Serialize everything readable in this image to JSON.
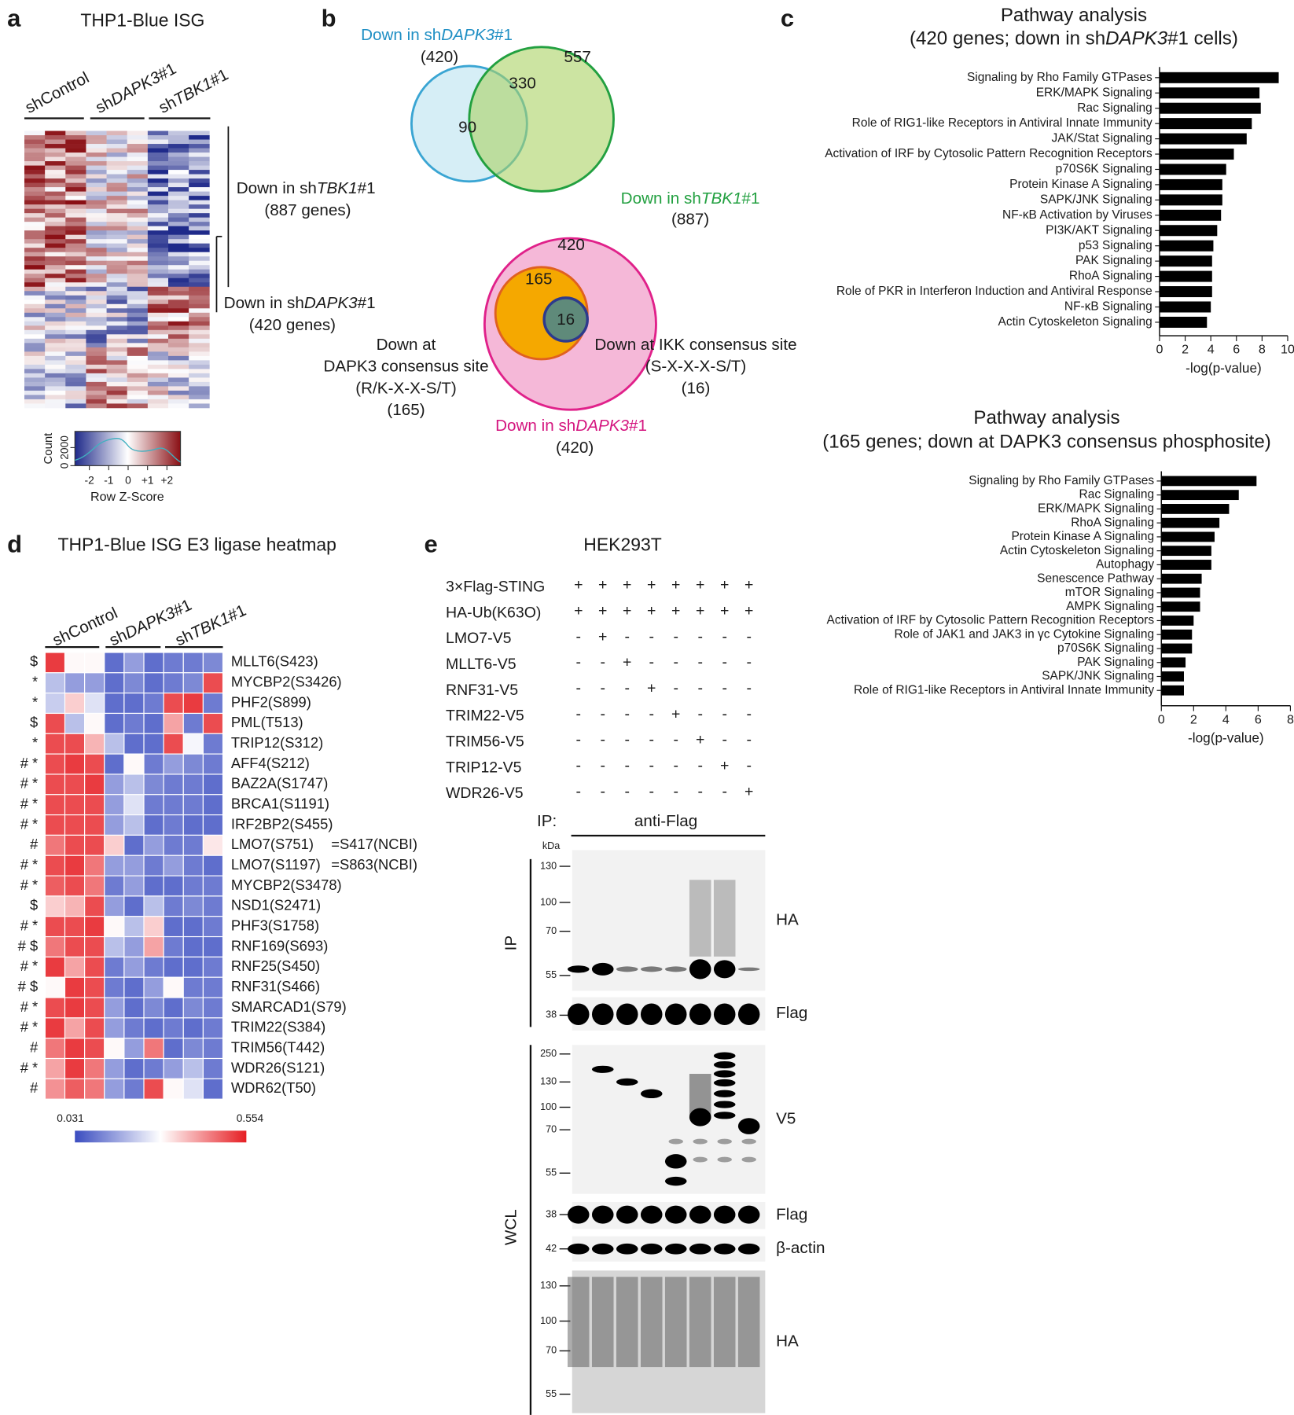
{
  "panel_labels": [
    "a",
    "b",
    "c",
    "d",
    "e"
  ],
  "panel_a": {
    "title": "THP1-Blue ISG",
    "groups": [
      [
        "shControl"
      ],
      [
        "sh",
        "DAPK3",
        "#1"
      ],
      [
        "sh",
        "TBK1",
        "#1"
      ]
    ],
    "annotations": [
      [
        [
          "Down in sh",
          "TBK1",
          "#1"
        ],
        [
          "(887 genes)"
        ]
      ],
      [
        [
          "Down in sh",
          "DAPK3",
          "#1"
        ],
        [
          "(420 genes)"
        ]
      ]
    ],
    "key": {
      "ylabel": "Count",
      "yticks": [
        0,
        2000
      ],
      "xticks": [
        -2,
        -1,
        0,
        {
          "value": 1,
          "label": "+1"
        },
        {
          "value": 2,
          "label": "+2"
        }
      ],
      "xlabel": "Row Z-Score"
    }
  },
  "panel_b": {
    "venn_top": {
      "label_a": [
        "Down in sh",
        "DAPK3",
        "#1"
      ],
      "count_a": "(420)",
      "label_b": [
        "Down in sh",
        "TBK1",
        "#1"
      ],
      "count_b": "(887)",
      "only_b": 557,
      "both": 330,
      "only_a": 90
    },
    "venn_bottom": {
      "outer": 420,
      "middle": 165,
      "inner": 16,
      "middle_label": [
        "Down at",
        "DAPK3 consensus site",
        "(R/K-X-X-S/T)",
        "(165)"
      ],
      "inner_label": [
        "Down at IKK consensus site",
        "(S-X-X-X-S/T)",
        "(16)"
      ],
      "outer_label": [
        "Down in sh",
        "DAPK3",
        "#1"
      ],
      "outer_count": "(420)"
    }
  },
  "chart_data": [
    {
      "type": "bar",
      "orientation": "horizontal",
      "title": "Pathway analysis",
      "subtitle": [
        "(420 genes; down in sh",
        "DAPK3",
        "#1 cells)"
      ],
      "categories": [
        "Signaling by Rho Family GTPases",
        "ERK/MAPK Signaling",
        "Rac Signaling",
        "Role of RIG1-like Receptors in Antiviral Innate Immunity",
        "JAK/Stat Signaling",
        "Activation of IRF by Cytosolic Pattern Recognition Receptors",
        "p70S6K Signaling",
        "Protein Kinase A Signaling",
        "SAPK/JNK Signaling",
        "NF-κB Activation by Viruses",
        "PI3K/AKT Signaling",
        "p53 Signaling",
        "PAK Signaling",
        "RhoA Signaling",
        "Role of PKR in Interferon Induction and Antiviral Response",
        "NF-κB Signaling",
        "Actin Cytoskeleton Signaling"
      ],
      "values": [
        9.3,
        7.8,
        7.9,
        7.2,
        6.8,
        5.8,
        5.2,
        4.9,
        4.9,
        4.8,
        4.5,
        4.2,
        4.1,
        4.1,
        4.1,
        4.0,
        3.7
      ],
      "color": "#000000",
      "xlim": [
        0,
        10
      ],
      "xticks": [
        0,
        2,
        4,
        6,
        8,
        10
      ],
      "xlabel": "-log(p-value)"
    },
    {
      "type": "bar",
      "orientation": "horizontal",
      "title": "Pathway analysis",
      "subtitle": [
        "(165 genes; down at DAPK3 consensus phosphosite)"
      ],
      "categories": [
        "Signaling by Rho Family GTPases",
        "Rac Signaling",
        "ERK/MAPK Signaling",
        "RhoA Signaling",
        "Protein Kinase A Signaling",
        "Actin Cytoskeleton Signaling",
        "Autophagy",
        "Senescence Pathway",
        "mTOR Signaling",
        "AMPK Signaling",
        "Activation of IRF by Cytosolic Pattern Recognition Receptors",
        "Role of JAK1 and JAK3 in γc Cytokine Signaling",
        "p70S6K Signaling",
        "PAK Signaling",
        "SAPK/JNK Signaling",
        "Role of RIG1-like Receptors in Antiviral Innate Immunity"
      ],
      "values": [
        5.9,
        4.8,
        4.2,
        3.6,
        3.3,
        3.1,
        3.1,
        2.5,
        2.4,
        2.4,
        2.0,
        1.9,
        1.9,
        1.5,
        1.4,
        1.4
      ],
      "color": "#000000",
      "xlim": [
        0,
        8
      ],
      "xticks": [
        0,
        2,
        4,
        6,
        8
      ],
      "xlabel": "-log(p-value)"
    }
  ],
  "panel_d": {
    "title": "THP1-Blue ISG  E3 ligase heatmap",
    "groups": [
      [
        "shControl"
      ],
      [
        "sh",
        "DAPK3",
        "#1"
      ],
      [
        "sh",
        "TBK1",
        "#1"
      ]
    ],
    "scale": {
      "min": 0.031,
      "max": 0.554
    },
    "rows": [
      {
        "marks": "$",
        "site": "MLLT6(S423)",
        "values": [
          0.52,
          0.3,
          0.3,
          0.08,
          0.15,
          0.08,
          0.1,
          0.1,
          0.12
        ]
      },
      {
        "marks": "*",
        "site": "MYCBP2(S3426)",
        "values": [
          0.2,
          0.15,
          0.15,
          0.08,
          0.12,
          0.08,
          0.1,
          0.12,
          0.5
        ]
      },
      {
        "marks": "*",
        "site": "PHF2(S899)",
        "values": [
          0.22,
          0.35,
          0.25,
          0.08,
          0.08,
          0.1,
          0.5,
          0.52,
          0.1
        ]
      },
      {
        "marks": "$",
        "site": "PML(T513)",
        "values": [
          0.5,
          0.2,
          0.3,
          0.08,
          0.1,
          0.08,
          0.4,
          0.1,
          0.5
        ]
      },
      {
        "marks": "*",
        "site": "TRIP12(S312)",
        "values": [
          0.5,
          0.5,
          0.38,
          0.2,
          0.08,
          0.08,
          0.5,
          0.28,
          0.1
        ]
      },
      {
        "marks": "# *",
        "site": "AFF4(S212)",
        "values": [
          0.5,
          0.52,
          0.5,
          0.08,
          0.3,
          0.1,
          0.15,
          0.12,
          0.1
        ]
      },
      {
        "marks": "# *",
        "site": "BAZ2A(S1747)",
        "values": [
          0.5,
          0.5,
          0.52,
          0.15,
          0.2,
          0.12,
          0.1,
          0.1,
          0.08
        ]
      },
      {
        "marks": "# *",
        "site": "BRCA1(S1191)",
        "values": [
          0.5,
          0.5,
          0.5,
          0.15,
          0.25,
          0.1,
          0.1,
          0.1,
          0.08
        ]
      },
      {
        "marks": "# *",
        "site": "IRF2BP2(S455)",
        "values": [
          0.5,
          0.5,
          0.5,
          0.15,
          0.2,
          0.08,
          0.1,
          0.08,
          0.08
        ]
      },
      {
        "marks": "#",
        "site": "LMO7(S751)",
        "note": "=S417(NCBI)",
        "values": [
          0.45,
          0.5,
          0.5,
          0.35,
          0.08,
          0.15,
          0.1,
          0.1,
          0.32
        ]
      },
      {
        "marks": "# *",
        "site": "LMO7(S1197)",
        "note": "=S863(NCBI)",
        "values": [
          0.5,
          0.52,
          0.45,
          0.15,
          0.15,
          0.1,
          0.15,
          0.1,
          0.08
        ]
      },
      {
        "marks": "# *",
        "site": "MYCBP2(S3478)",
        "values": [
          0.48,
          0.5,
          0.45,
          0.1,
          0.15,
          0.08,
          0.08,
          0.1,
          0.1
        ]
      },
      {
        "marks": "$",
        "site": "NSD1(S2471)",
        "values": [
          0.35,
          0.38,
          0.5,
          0.15,
          0.08,
          0.2,
          0.1,
          0.12,
          0.1
        ]
      },
      {
        "marks": "# *",
        "site": "PHF3(S1758)",
        "values": [
          0.5,
          0.5,
          0.52,
          0.3,
          0.2,
          0.35,
          0.08,
          0.08,
          0.1
        ]
      },
      {
        "marks": "# $",
        "site": "RNF169(S693)",
        "values": [
          0.45,
          0.5,
          0.5,
          0.2,
          0.15,
          0.4,
          0.1,
          0.08,
          0.08
        ]
      },
      {
        "marks": "# *",
        "site": "RNF25(S450)",
        "values": [
          0.52,
          0.4,
          0.5,
          0.1,
          0.15,
          0.1,
          0.08,
          0.08,
          0.1
        ]
      },
      {
        "marks": "# $",
        "site": "RNF31(S466)",
        "values": [
          0.3,
          0.52,
          0.5,
          0.1,
          0.08,
          0.15,
          0.3,
          0.1,
          0.1
        ]
      },
      {
        "marks": "# *",
        "site": "SMARCAD1(S79)",
        "values": [
          0.5,
          0.52,
          0.5,
          0.15,
          0.08,
          0.12,
          0.08,
          0.12,
          0.1
        ]
      },
      {
        "marks": "# *",
        "site": "TRIM22(S384)",
        "values": [
          0.52,
          0.4,
          0.5,
          0.15,
          0.1,
          0.08,
          0.1,
          0.08,
          0.1
        ]
      },
      {
        "marks": "#",
        "site": "TRIM56(T442)",
        "values": [
          0.45,
          0.52,
          0.5,
          0.3,
          0.15,
          0.45,
          0.08,
          0.12,
          0.1
        ]
      },
      {
        "marks": "# *",
        "site": "WDR26(S121)",
        "values": [
          0.4,
          0.52,
          0.45,
          0.15,
          0.08,
          0.1,
          0.15,
          0.2,
          0.1
        ]
      },
      {
        "marks": "#",
        "site": "WDR62(T50)",
        "values": [
          0.42,
          0.48,
          0.45,
          0.15,
          0.1,
          0.5,
          0.3,
          0.25,
          0.08
        ]
      }
    ]
  },
  "panel_e": {
    "title": "HEK293T",
    "conditions": [
      {
        "label": "3×Flag-STING",
        "signs": [
          "+",
          "+",
          "+",
          "+",
          "+",
          "+",
          "+",
          "+"
        ]
      },
      {
        "label": "HA-Ub(K63O)",
        "signs": [
          "+",
          "+",
          "+",
          "+",
          "+",
          "+",
          "+",
          "+"
        ]
      },
      {
        "label": "LMO7-V5",
        "signs": [
          "-",
          "+",
          "-",
          "-",
          "-",
          "-",
          "-",
          "-"
        ]
      },
      {
        "label": "MLLT6-V5",
        "signs": [
          "-",
          "-",
          "+",
          "-",
          "-",
          "-",
          "-",
          "-"
        ]
      },
      {
        "label": "RNF31-V5",
        "signs": [
          "-",
          "-",
          "-",
          "+",
          "-",
          "-",
          "-",
          "-"
        ]
      },
      {
        "label": "TRIM22-V5",
        "signs": [
          "-",
          "-",
          "-",
          "-",
          "+",
          "-",
          "-",
          "-"
        ]
      },
      {
        "label": "TRIM56-V5",
        "signs": [
          "-",
          "-",
          "-",
          "-",
          "-",
          "+",
          "-",
          "-"
        ]
      },
      {
        "label": "TRIP12-V5",
        "signs": [
          "-",
          "-",
          "-",
          "-",
          "-",
          "-",
          "+",
          "-"
        ]
      },
      {
        "label": "WDR26-V5",
        "signs": [
          "-",
          "-",
          "-",
          "-",
          "-",
          "-",
          "-",
          "+"
        ]
      }
    ],
    "ip_label": "IP:",
    "ip_antibody": "anti-Flag",
    "kda": "kDa",
    "sections": [
      "IP",
      "WCL"
    ],
    "blots": [
      {
        "label": "HA",
        "markers": [
          130,
          100,
          70,
          55
        ]
      },
      {
        "label": "Flag",
        "markers": [
          38
        ]
      },
      {
        "label": "V5",
        "markers": [
          250,
          130,
          100,
          70,
          55
        ]
      },
      {
        "label": "Flag",
        "markers": [
          38
        ]
      },
      {
        "label": "β-actin",
        "markers": [
          42
        ]
      },
      {
        "label": "HA",
        "markers": [
          130,
          100,
          70,
          55
        ]
      }
    ]
  }
}
